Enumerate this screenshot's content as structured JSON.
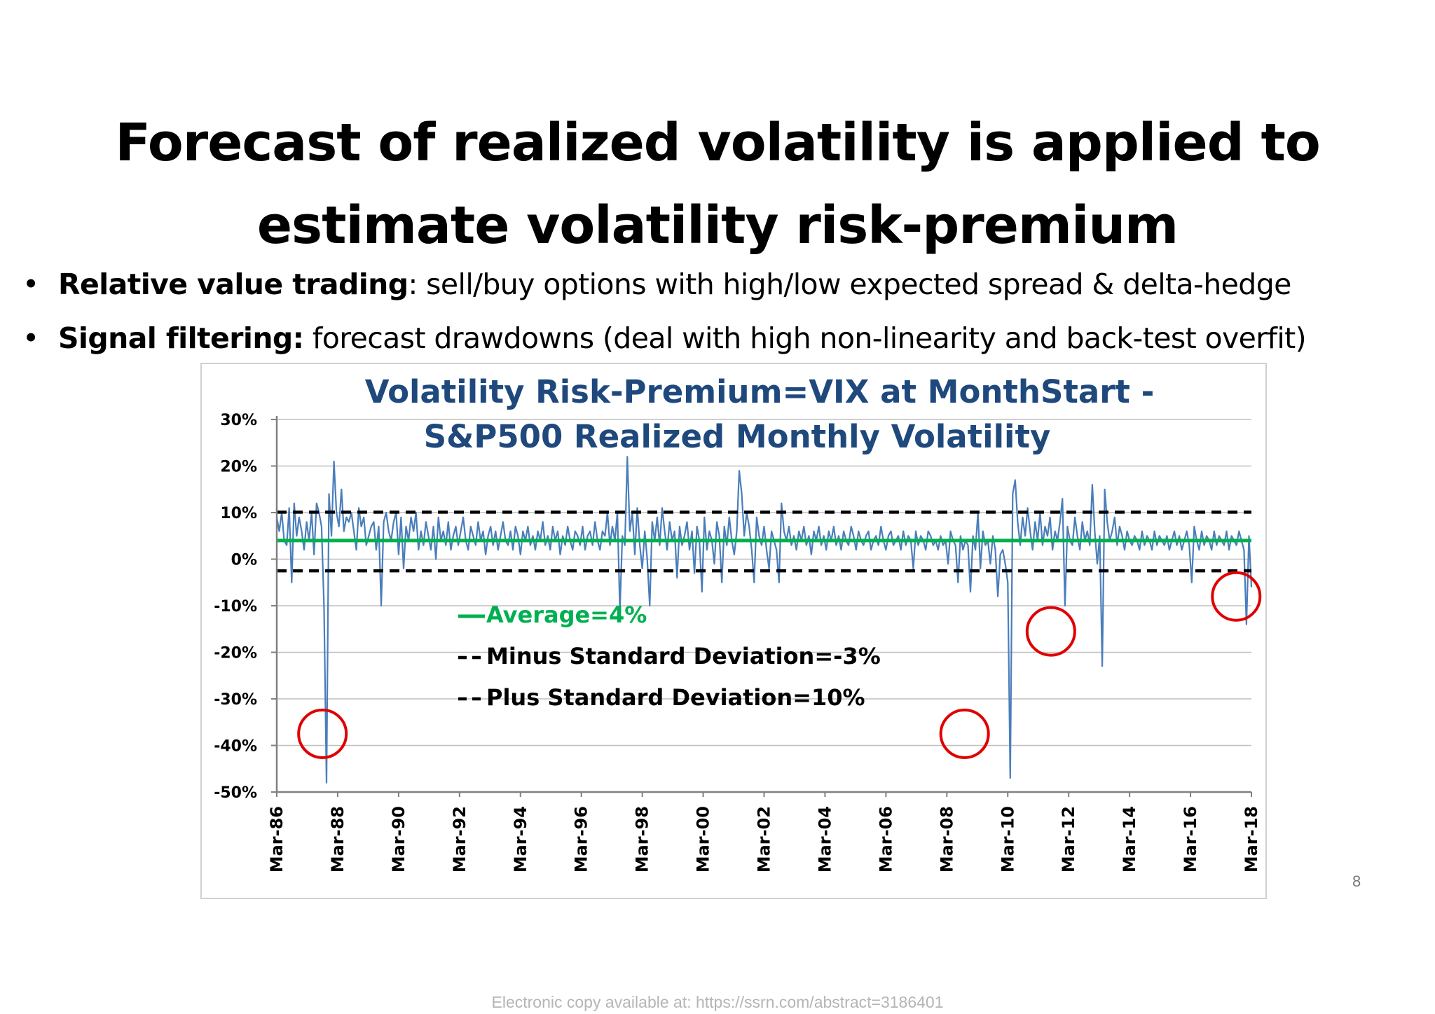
{
  "slide": {
    "title_lines": [
      "Forecast of realized volatility is applied to",
      "estimate volatility risk-premium"
    ],
    "bullets": [
      {
        "bold": "Relative value trading",
        "text": ": sell/buy options with high/low expected spread & delta-hedge"
      },
      {
        "bold": "Signal filtering:",
        "text": " forecast drawdowns (deal with high non-linearity and back-test overfit)"
      }
    ],
    "page_number": "8",
    "footer": "Electronic copy available at: https://ssrn.com/abstract=3186401"
  },
  "chart_data": {
    "type": "line",
    "title_lines": [
      "Volatility Risk-Premium=VIX at MonthStart  -",
      "S&P500 Realized Monthly Volatility"
    ],
    "xlabel": "",
    "ylabel": "",
    "x_start": "Mar-86",
    "x_end": "Mar-18",
    "frequency": "monthly",
    "ylim": [
      -0.5,
      0.3
    ],
    "y_ticks": [
      0.3,
      0.2,
      0.1,
      0.0,
      -0.1,
      -0.2,
      -0.3,
      -0.4,
      -0.5
    ],
    "y_tick_labels": [
      "30%",
      "20%",
      "10%",
      "0%",
      "-10%",
      "-20%",
      "-30%",
      "-40%",
      "-50%"
    ],
    "x_tick_labels": [
      "Mar-86",
      "Mar-88",
      "Mar-90",
      "Mar-92",
      "Mar-94",
      "Mar-96",
      "Mar-98",
      "Mar-00",
      "Mar-02",
      "Mar-04",
      "Mar-06",
      "Mar-08",
      "Mar-10",
      "Mar-12",
      "Mar-14",
      "Mar-16",
      "Mar-18"
    ],
    "grid": true,
    "legend_position": "center-left",
    "series": [
      {
        "name": "",
        "style": "line",
        "color": "#4a7ebb",
        "values": [
          0.09,
          0.06,
          0.1,
          0.04,
          0.03,
          0.11,
          -0.05,
          0.12,
          0.05,
          0.09,
          0.06,
          0.02,
          0.08,
          0.04,
          0.1,
          0.01,
          0.12,
          0.1,
          0.07,
          -0.1,
          -0.48,
          0.14,
          0.05,
          0.21,
          0.1,
          0.07,
          0.15,
          0.06,
          0.09,
          0.08,
          0.1,
          0.06,
          0.02,
          0.11,
          0.07,
          0.09,
          0.03,
          0.05,
          0.07,
          0.08,
          0.02,
          0.07,
          -0.1,
          0.08,
          0.1,
          0.06,
          0.04,
          0.08,
          0.1,
          0.01,
          0.09,
          -0.02,
          0.07,
          0.04,
          0.09,
          0.06,
          0.1,
          0.02,
          0.06,
          0.03,
          0.08,
          0.05,
          0.02,
          0.07,
          0.0,
          0.09,
          0.04,
          0.06,
          0.03,
          0.08,
          0.02,
          0.05,
          0.07,
          0.03,
          0.06,
          0.09,
          0.04,
          0.02,
          0.07,
          0.05,
          0.03,
          0.08,
          0.04,
          0.06,
          0.01,
          0.05,
          0.07,
          0.03,
          0.06,
          0.02,
          0.05,
          0.08,
          0.04,
          0.03,
          0.06,
          0.02,
          0.07,
          0.05,
          0.01,
          0.06,
          0.04,
          0.07,
          0.03,
          0.05,
          0.02,
          0.06,
          0.04,
          0.08,
          0.03,
          0.05,
          0.02,
          0.07,
          0.04,
          0.06,
          0.01,
          0.05,
          0.03,
          0.07,
          0.04,
          0.02,
          0.06,
          0.05,
          0.03,
          0.07,
          0.02,
          0.05,
          0.06,
          0.03,
          0.08,
          0.04,
          0.02,
          0.06,
          0.05,
          0.1,
          0.03,
          0.07,
          0.04,
          0.1,
          -0.11,
          0.05,
          0.03,
          0.22,
          0.06,
          0.1,
          0.01,
          0.11,
          0.03,
          -0.02,
          0.06,
          0.0,
          -0.1,
          0.08,
          0.04,
          0.09,
          0.03,
          0.11,
          0.06,
          0.02,
          0.08,
          0.04,
          0.06,
          -0.04,
          0.07,
          0.03,
          0.05,
          0.08,
          0.02,
          0.06,
          -0.03,
          0.07,
          0.04,
          -0.07,
          0.09,
          0.02,
          0.06,
          0.04,
          -0.01,
          0.08,
          0.05,
          -0.05,
          0.07,
          0.03,
          0.09,
          0.04,
          0.01,
          0.06,
          0.19,
          0.14,
          0.05,
          0.1,
          0.07,
          0.02,
          -0.05,
          0.09,
          0.05,
          0.03,
          0.07,
          0.02,
          -0.02,
          0.06,
          0.04,
          0.02,
          -0.05,
          0.12,
          0.06,
          0.04,
          0.07,
          0.03,
          0.05,
          0.02,
          0.06,
          0.04,
          0.07,
          0.03,
          0.05,
          0.01,
          0.06,
          0.04,
          0.07,
          0.03,
          0.05,
          0.02,
          0.06,
          0.04,
          0.07,
          0.03,
          0.05,
          0.02,
          0.06,
          0.04,
          0.03,
          0.07,
          0.05,
          0.02,
          0.06,
          0.04,
          0.03,
          0.05,
          0.06,
          0.02,
          0.04,
          0.05,
          0.03,
          0.07,
          0.04,
          0.02,
          0.05,
          0.06,
          0.03,
          0.04,
          0.05,
          0.02,
          0.06,
          0.03,
          0.05,
          0.04,
          -0.02,
          0.06,
          0.03,
          0.05,
          0.04,
          0.02,
          0.06,
          0.05,
          0.03,
          0.04,
          0.02,
          0.05,
          0.03,
          0.04,
          -0.01,
          0.06,
          0.04,
          0.03,
          -0.05,
          0.05,
          0.02,
          0.04,
          0.03,
          -0.07,
          0.05,
          0.02,
          0.1,
          -0.02,
          0.06,
          0.03,
          0.04,
          -0.01,
          0.05,
          0.02,
          -0.08,
          0.01,
          0.02,
          -0.01,
          -0.05,
          -0.47,
          0.14,
          0.17,
          0.08,
          0.03,
          0.09,
          0.05,
          0.11,
          0.06,
          0.02,
          0.08,
          0.04,
          0.1,
          0.03,
          0.07,
          0.05,
          0.09,
          0.02,
          0.06,
          0.04,
          0.08,
          0.13,
          -0.1,
          0.07,
          0.04,
          0.03,
          0.09,
          0.05,
          0.02,
          0.08,
          0.04,
          0.06,
          0.03,
          0.16,
          0.06,
          -0.01,
          0.05,
          -0.23,
          0.15,
          0.08,
          0.04,
          0.06,
          0.09,
          0.03,
          0.07,
          0.05,
          0.02,
          0.06,
          0.04,
          0.03,
          0.05,
          0.04,
          0.02,
          0.06,
          0.03,
          0.05,
          0.04,
          0.02,
          0.06,
          0.03,
          0.05,
          0.04,
          0.03,
          0.05,
          0.02,
          0.04,
          0.06,
          0.03,
          0.05,
          0.02,
          0.04,
          0.06,
          0.03,
          -0.05,
          0.07,
          0.04,
          0.02,
          0.06,
          0.03,
          0.05,
          0.04,
          0.02,
          0.06,
          0.03,
          0.05,
          0.04,
          0.03,
          0.06,
          0.02,
          0.05,
          0.04,
          0.03,
          0.06,
          0.04,
          0.02,
          -0.14,
          0.05,
          -0.06
        ]
      },
      {
        "name": "Average=4%",
        "style": "solid",
        "color": "#00b050",
        "values": [
          0.04,
          0.04
        ]
      },
      {
        "name": "Minus Standard Deviation=-3%",
        "style": "dashed",
        "color": "#000000",
        "values": [
          -0.025,
          -0.025
        ]
      },
      {
        "name": "Plus Standard Deviation=10%",
        "style": "dashed",
        "color": "#000000",
        "values": [
          0.101,
          0.101
        ]
      }
    ],
    "annotations": [
      {
        "shape": "circle",
        "color": "#e00000",
        "x": "Sep-87",
        "y": -0.375
      },
      {
        "shape": "circle",
        "color": "#e00000",
        "x": "Oct-08",
        "y": -0.375
      },
      {
        "shape": "circle",
        "color": "#e00000",
        "x": "Aug-11",
        "y": -0.155
      },
      {
        "shape": "circle",
        "color": "#e00000",
        "x": "Sep-17",
        "y": -0.08
      }
    ]
  }
}
